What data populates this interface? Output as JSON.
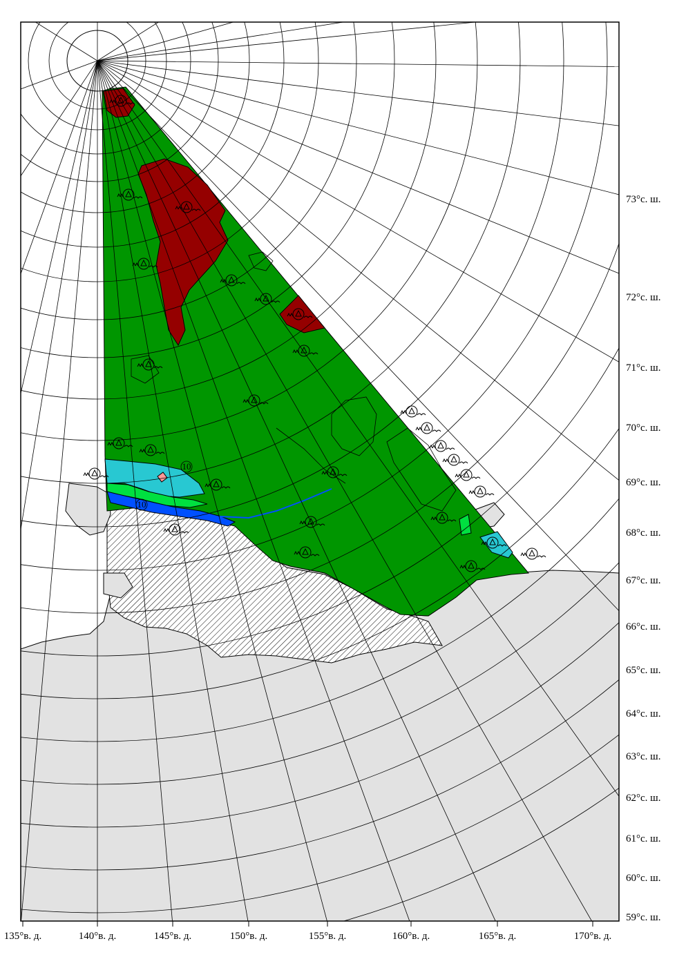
{
  "map": {
    "latitude_labels": [
      "73°с. ш.",
      "72°с. ш.",
      "71°с. ш.",
      "70°с. ш.",
      "69°с. ш.",
      "68°с. ш.",
      "67°с. ш.",
      "66°с. ш.",
      "65°с. ш.",
      "64°с. ш.",
      "63°с. ш.",
      "62°с. ш.",
      "61°с. ш.",
      "60°с. ш.",
      "59°с. ш."
    ],
    "longitude_labels": [
      "135°в. д.",
      "140°в. д.",
      "145°в. д.",
      "150°в. д.",
      "155°в. д.",
      "160°в. д.",
      "165°в. д.",
      "170°в. д."
    ],
    "contour_labels": [
      "10",
      "10"
    ],
    "colors": {
      "land": "#e2e2e2",
      "sea_ice_green": "#009600",
      "dark_red": "#950000",
      "cyan": "#28c8d2",
      "light_green": "#00e040",
      "blue": "#0050ff",
      "pink": "#ff9898",
      "grid": "#000000"
    }
  }
}
